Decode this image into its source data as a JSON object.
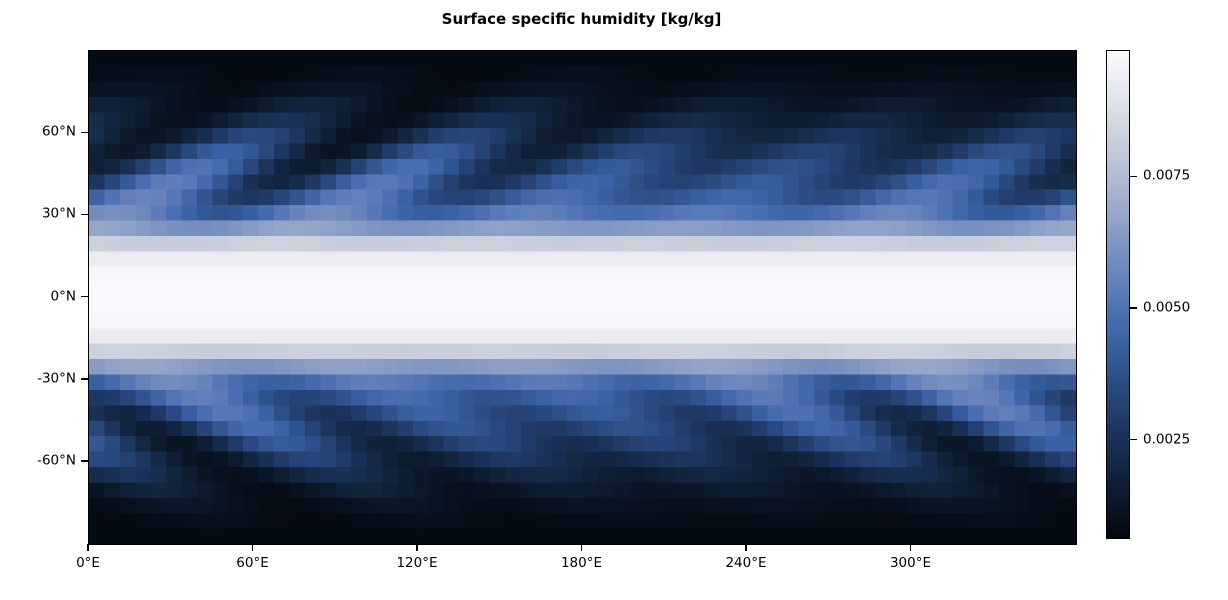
{
  "chart_data": {
    "type": "heatmap",
    "title": "Surface specific humidity [kg/kg]",
    "x_axis": {
      "range_deg_lon": [
        0,
        360
      ],
      "ticks": [
        {
          "value": 0,
          "label": "0°E"
        },
        {
          "value": 60,
          "label": "60°E"
        },
        {
          "value": 120,
          "label": "120°E"
        },
        {
          "value": 180,
          "label": "180°E"
        },
        {
          "value": 240,
          "label": "240°E"
        },
        {
          "value": 300,
          "label": "300°E"
        }
      ]
    },
    "y_axis": {
      "range_deg_lat": [
        -90,
        90
      ],
      "ticks": [
        {
          "value": 60,
          "label": "60°N"
        },
        {
          "value": 30,
          "label": "30°N"
        },
        {
          "value": 0,
          "label": "0°N"
        },
        {
          "value": -30,
          "label": "-30°N"
        },
        {
          "value": -60,
          "label": "-60°N"
        }
      ]
    },
    "colorbar": {
      "vmin": 0.00065,
      "vmax": 0.0099,
      "ticks": [
        {
          "value": 0.0075,
          "label": "0.0075"
        },
        {
          "value": 0.005,
          "label": "0.0050"
        },
        {
          "value": 0.0025,
          "label": "0.0025"
        }
      ],
      "colormap_stops": [
        [
          0.0,
          "#04070e"
        ],
        [
          0.05,
          "#08121f"
        ],
        [
          0.1,
          "#0e1c31"
        ],
        [
          0.15,
          "#142743"
        ],
        [
          0.2,
          "#1a3156"
        ],
        [
          0.25,
          "#213c6a"
        ],
        [
          0.3,
          "#28487d"
        ],
        [
          0.35,
          "#30548f"
        ],
        [
          0.4,
          "#3a61a3"
        ],
        [
          0.45,
          "#486db0"
        ],
        [
          0.5,
          "#5a7ab8"
        ],
        [
          0.55,
          "#6c87bd"
        ],
        [
          0.6,
          "#7d94c2"
        ],
        [
          0.65,
          "#91a3c7"
        ],
        [
          0.7,
          "#a4b1cd"
        ],
        [
          0.75,
          "#b4bdd3"
        ],
        [
          0.8,
          "#c4cbd9"
        ],
        [
          0.85,
          "#d2d7e1"
        ],
        [
          0.9,
          "#e0e4eb"
        ],
        [
          0.95,
          "#eef0f5"
        ],
        [
          1.0,
          "#fbfcfe"
        ]
      ]
    },
    "grid": {
      "n_lon": 64,
      "n_lat": 32,
      "lon_cell_deg": 5.625,
      "lat_cell_deg": 5.625
    },
    "field": {
      "note": "Approximation of the plotted 64x32 field read from the image: zonal-mean humidity profile plus tilted midlatitude storm-track waves; units kg/kg.",
      "abs_lat_profile": [
        0,
        2.8125,
        8.4375,
        14.0625,
        19.6875,
        25.3125,
        30.9375,
        36.5625,
        42.1875,
        47.8125,
        53.4375,
        59.0625,
        64.6875,
        70.3125,
        75.9375,
        81.5625,
        87.1875,
        90
      ],
      "zonal_mean": [
        0.0098,
        0.0098,
        0.0097,
        0.0093,
        0.0082,
        0.0064,
        0.005,
        0.0042,
        0.0037,
        0.0033,
        0.0028,
        0.0023,
        0.0018,
        0.0014,
        0.0011,
        0.0009,
        0.0008,
        0.0008
      ],
      "wave_amplitude": [
        0,
        0,
        0,
        0,
        0.0001,
        0.0003,
        0.0008,
        0.0011,
        0.0013,
        0.0013,
        0.0012,
        0.0009,
        0.0006,
        0.0004,
        0.0002,
        0.0001,
        0,
        0
      ],
      "waves": [
        {
          "wavenumber": 5,
          "rel_amplitude": 0.85,
          "crest_lon_nh": 10,
          "crest_lon_sh": 25,
          "tilt_deg_lon_per_deg_lat": 1.8,
          "ref_abs_lat": 30
        },
        {
          "wavenumber": 4,
          "rel_amplitude": 0.5,
          "crest_lon_nh": 95,
          "crest_lon_sh": 130,
          "tilt_deg_lon_per_deg_lat": 1.8,
          "ref_abs_lat": 30
        }
      ]
    }
  }
}
